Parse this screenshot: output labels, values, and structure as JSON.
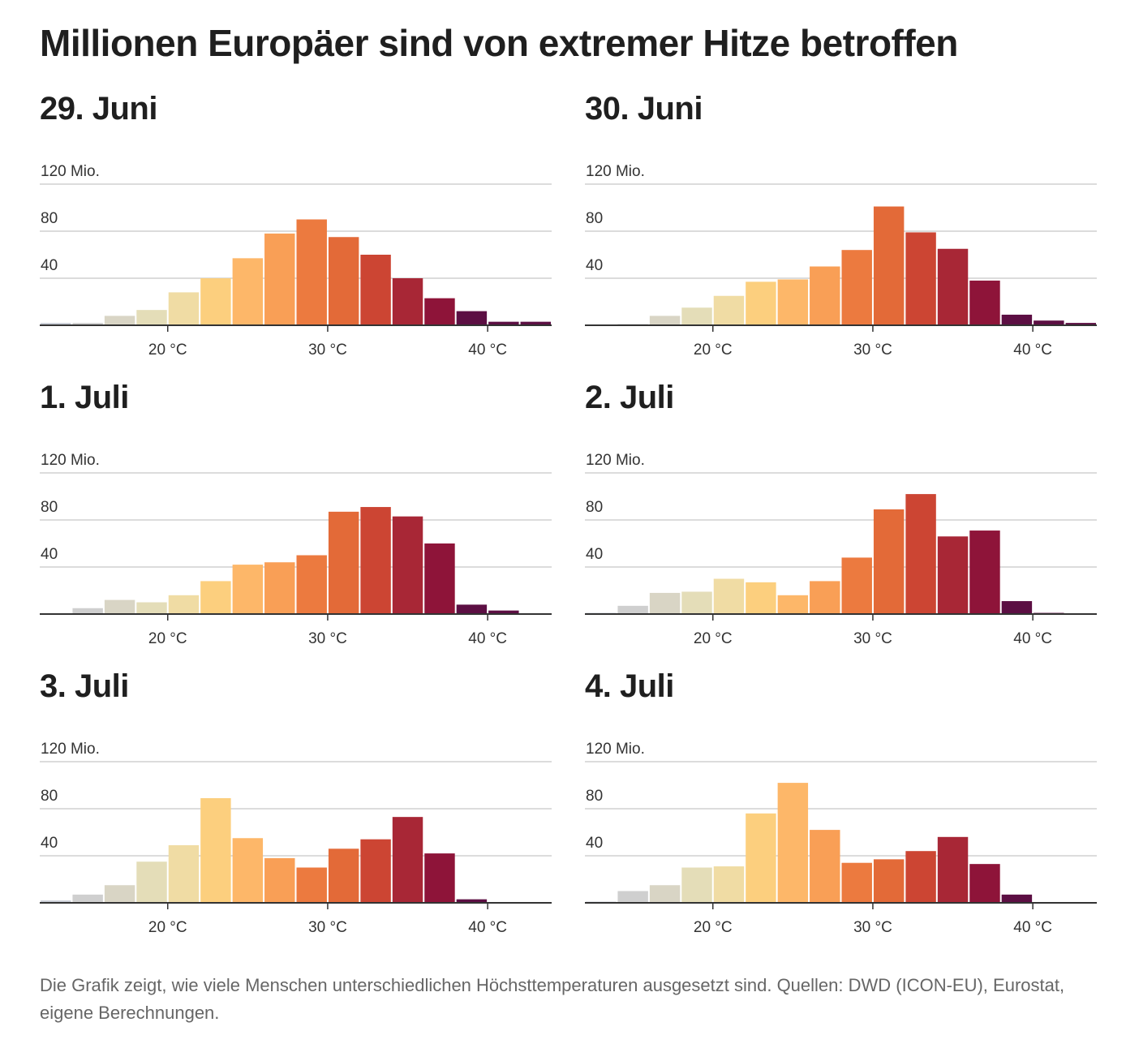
{
  "title": "Millionen Europäer sind von extremer Hitze betroffen",
  "footnote": "Die Grafik zeigt, wie viele Menschen unterschiedlichen Höchsttemperaturen ausgesetzt sind. Quellen: DWD (ICON-EU), Eurostat, eigene Berechnungen.",
  "axis": {
    "y_ticks": [
      {
        "value": 120,
        "label": "120 Mio."
      },
      {
        "value": 80,
        "label": "80"
      },
      {
        "value": 40,
        "label": "40"
      }
    ],
    "x_ticks": [
      {
        "value": 20,
        "label": "20 °C"
      },
      {
        "value": 30,
        "label": "30 °C"
      },
      {
        "value": 40,
        "label": "40 °C"
      }
    ]
  },
  "colors": [
    "#c9cdd6",
    "#cfcfcf",
    "#d9d5c5",
    "#e4ddb8",
    "#f0dca4",
    "#fccf7e",
    "#fdb769",
    "#f99f56",
    "#ec7a3f",
    "#e36a38",
    "#cc4533",
    "#a82736",
    "#8e1439",
    "#5c0f43"
  ],
  "chart_data": [
    {
      "type": "bar",
      "title": "29. Juni",
      "xlabel": "",
      "ylabel": "",
      "ylim": [
        0,
        120
      ],
      "x": [
        13,
        15,
        17,
        19,
        21,
        23,
        25,
        27,
        29,
        31,
        33,
        35,
        37,
        39,
        41,
        43
      ],
      "values": [
        2,
        2,
        8,
        13,
        28,
        40,
        57,
        78,
        90,
        75,
        60,
        40,
        23,
        12,
        3,
        3
      ]
    },
    {
      "type": "bar",
      "title": "30. Juni",
      "xlabel": "",
      "ylabel": "",
      "ylim": [
        0,
        120
      ],
      "x": [
        13,
        15,
        17,
        19,
        21,
        23,
        25,
        27,
        29,
        31,
        33,
        35,
        37,
        39,
        41,
        43
      ],
      "values": [
        0,
        1,
        8,
        15,
        25,
        37,
        39,
        50,
        64,
        101,
        79,
        65,
        38,
        9,
        4,
        2
      ]
    },
    {
      "type": "bar",
      "title": "1. Juli",
      "xlabel": "",
      "ylabel": "",
      "ylim": [
        0,
        120
      ],
      "x": [
        13,
        15,
        17,
        19,
        21,
        23,
        25,
        27,
        29,
        31,
        33,
        35,
        37,
        39,
        41,
        43
      ],
      "values": [
        0,
        5,
        12,
        10,
        16,
        28,
        42,
        44,
        50,
        87,
        91,
        83,
        60,
        8,
        3,
        0
      ]
    },
    {
      "type": "bar",
      "title": "2. Juli",
      "xlabel": "",
      "ylabel": "",
      "ylim": [
        0,
        120
      ],
      "x": [
        13,
        15,
        17,
        19,
        21,
        23,
        25,
        27,
        29,
        31,
        33,
        35,
        37,
        39,
        41,
        43
      ],
      "values": [
        1,
        7,
        18,
        19,
        30,
        27,
        16,
        28,
        48,
        89,
        102,
        66,
        71,
        11,
        1,
        0
      ]
    },
    {
      "type": "bar",
      "title": "3. Juli",
      "xlabel": "",
      "ylabel": "",
      "ylim": [
        0,
        120
      ],
      "x": [
        13,
        15,
        17,
        19,
        21,
        23,
        25,
        27,
        29,
        31,
        33,
        35,
        37,
        39,
        41,
        43
      ],
      "values": [
        2,
        7,
        15,
        35,
        49,
        89,
        55,
        38,
        30,
        46,
        54,
        73,
        42,
        3,
        0,
        0
      ]
    },
    {
      "type": "bar",
      "title": "4. Juli",
      "xlabel": "",
      "ylabel": "",
      "ylim": [
        0,
        120
      ],
      "x": [
        13,
        15,
        17,
        19,
        21,
        23,
        25,
        27,
        29,
        31,
        33,
        35,
        37,
        39,
        41,
        43
      ],
      "values": [
        1,
        10,
        15,
        30,
        31,
        76,
        102,
        62,
        34,
        37,
        44,
        56,
        33,
        7,
        0,
        0
      ]
    }
  ]
}
